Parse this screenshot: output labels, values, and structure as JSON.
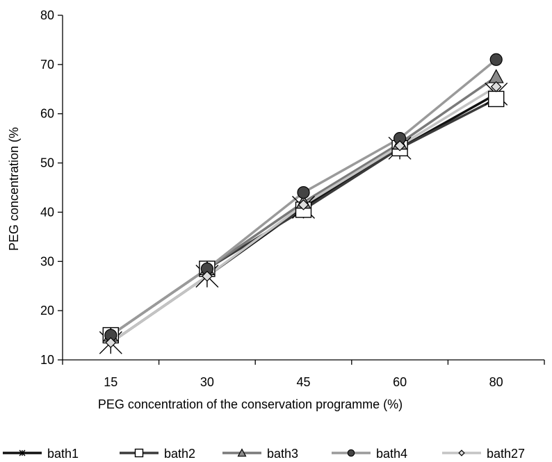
{
  "chart_data": {
    "type": "line",
    "xlabel": "PEG concentration of the conservation programme (%)",
    "ylabel": "PEG concentration (%",
    "categories": [
      "15",
      "30",
      "45",
      "60",
      "80"
    ],
    "yticks": [
      10,
      20,
      30,
      40,
      50,
      60,
      70,
      80
    ],
    "ylim": [
      10,
      80
    ],
    "grid": false,
    "legend_position": "bottom",
    "series": [
      {
        "name": "bath1",
        "values": [
          13.5,
          27,
          41,
          53,
          64
        ],
        "color": "#111111",
        "marker": "x-cross"
      },
      {
        "name": "bath2",
        "values": [
          15,
          28.5,
          40.5,
          53,
          63
        ],
        "color": "#3a3a3a",
        "marker": "square"
      },
      {
        "name": "bath3",
        "values": [
          15,
          28.5,
          42,
          54,
          67.5
        ],
        "color": "#7a7a7a",
        "marker": "triangle"
      },
      {
        "name": "bath4",
        "values": [
          15,
          28.5,
          44,
          55,
          71
        ],
        "color": "#9a9a9a",
        "marker": "circle"
      },
      {
        "name": "bath27",
        "values": [
          13.5,
          27,
          41.5,
          53.5,
          65.5
        ],
        "color": "#c4c4c4",
        "marker": "diamond"
      }
    ]
  }
}
